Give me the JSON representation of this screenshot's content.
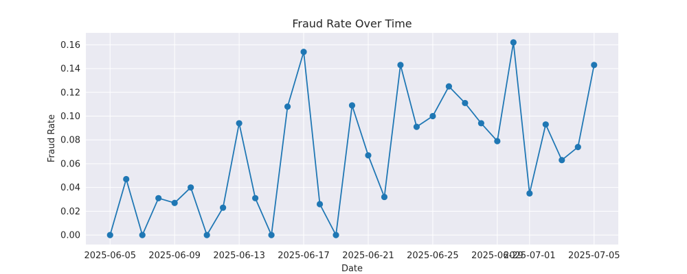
{
  "chart_data": {
    "type": "line",
    "title": "Fraud Rate Over Time",
    "xlabel": "Date",
    "ylabel": "Fraud Rate",
    "ylim": [
      -0.008,
      0.17
    ],
    "yticks": [
      0.0,
      0.02,
      0.04,
      0.06,
      0.08,
      0.1,
      0.12,
      0.14,
      0.16
    ],
    "ytick_labels": [
      "0.00",
      "0.02",
      "0.04",
      "0.06",
      "0.08",
      "0.10",
      "0.12",
      "0.14",
      "0.16"
    ],
    "xlim": [
      "2025-06-03T12:00",
      "2025-07-06T12:00"
    ],
    "xticks": [
      "2025-06-05",
      "2025-06-09",
      "2025-06-13",
      "2025-06-17",
      "2025-06-21",
      "2025-06-25",
      "2025-06-29",
      "2025-07-01",
      "2025-07-05"
    ],
    "xtick_labels": [
      "2025-06-05",
      "2025-06-09",
      "2025-06-13",
      "2025-06-17",
      "2025-06-21",
      "2025-06-25",
      "2025-06-29",
      "2025-07-01",
      "2025-07-05"
    ],
    "grid": true,
    "background": "#eaeaf2",
    "series": [
      {
        "color": "#1f77b4",
        "marker": "circle",
        "x": [
          "2025-06-05",
          "2025-06-06",
          "2025-06-07",
          "2025-06-08",
          "2025-06-09",
          "2025-06-10",
          "2025-06-11",
          "2025-06-12",
          "2025-06-13",
          "2025-06-14",
          "2025-06-15",
          "2025-06-16",
          "2025-06-17",
          "2025-06-18",
          "2025-06-19",
          "2025-06-20",
          "2025-06-21",
          "2025-06-22",
          "2025-06-23",
          "2025-06-24",
          "2025-06-25",
          "2025-06-26",
          "2025-06-27",
          "2025-06-28",
          "2025-06-29",
          "2025-06-30",
          "2025-07-01",
          "2025-07-02",
          "2025-07-03",
          "2025-07-04",
          "2025-07-05"
        ],
        "y": [
          0.0,
          0.047,
          0.0,
          0.031,
          0.027,
          0.04,
          0.0,
          0.023,
          0.094,
          0.031,
          0.0,
          0.108,
          0.154,
          0.026,
          0.0,
          0.109,
          0.067,
          0.032,
          0.143,
          0.091,
          0.1,
          0.125,
          0.111,
          0.094,
          0.079,
          0.162,
          0.035,
          0.093,
          0.063,
          0.074,
          0.143
        ]
      }
    ]
  }
}
